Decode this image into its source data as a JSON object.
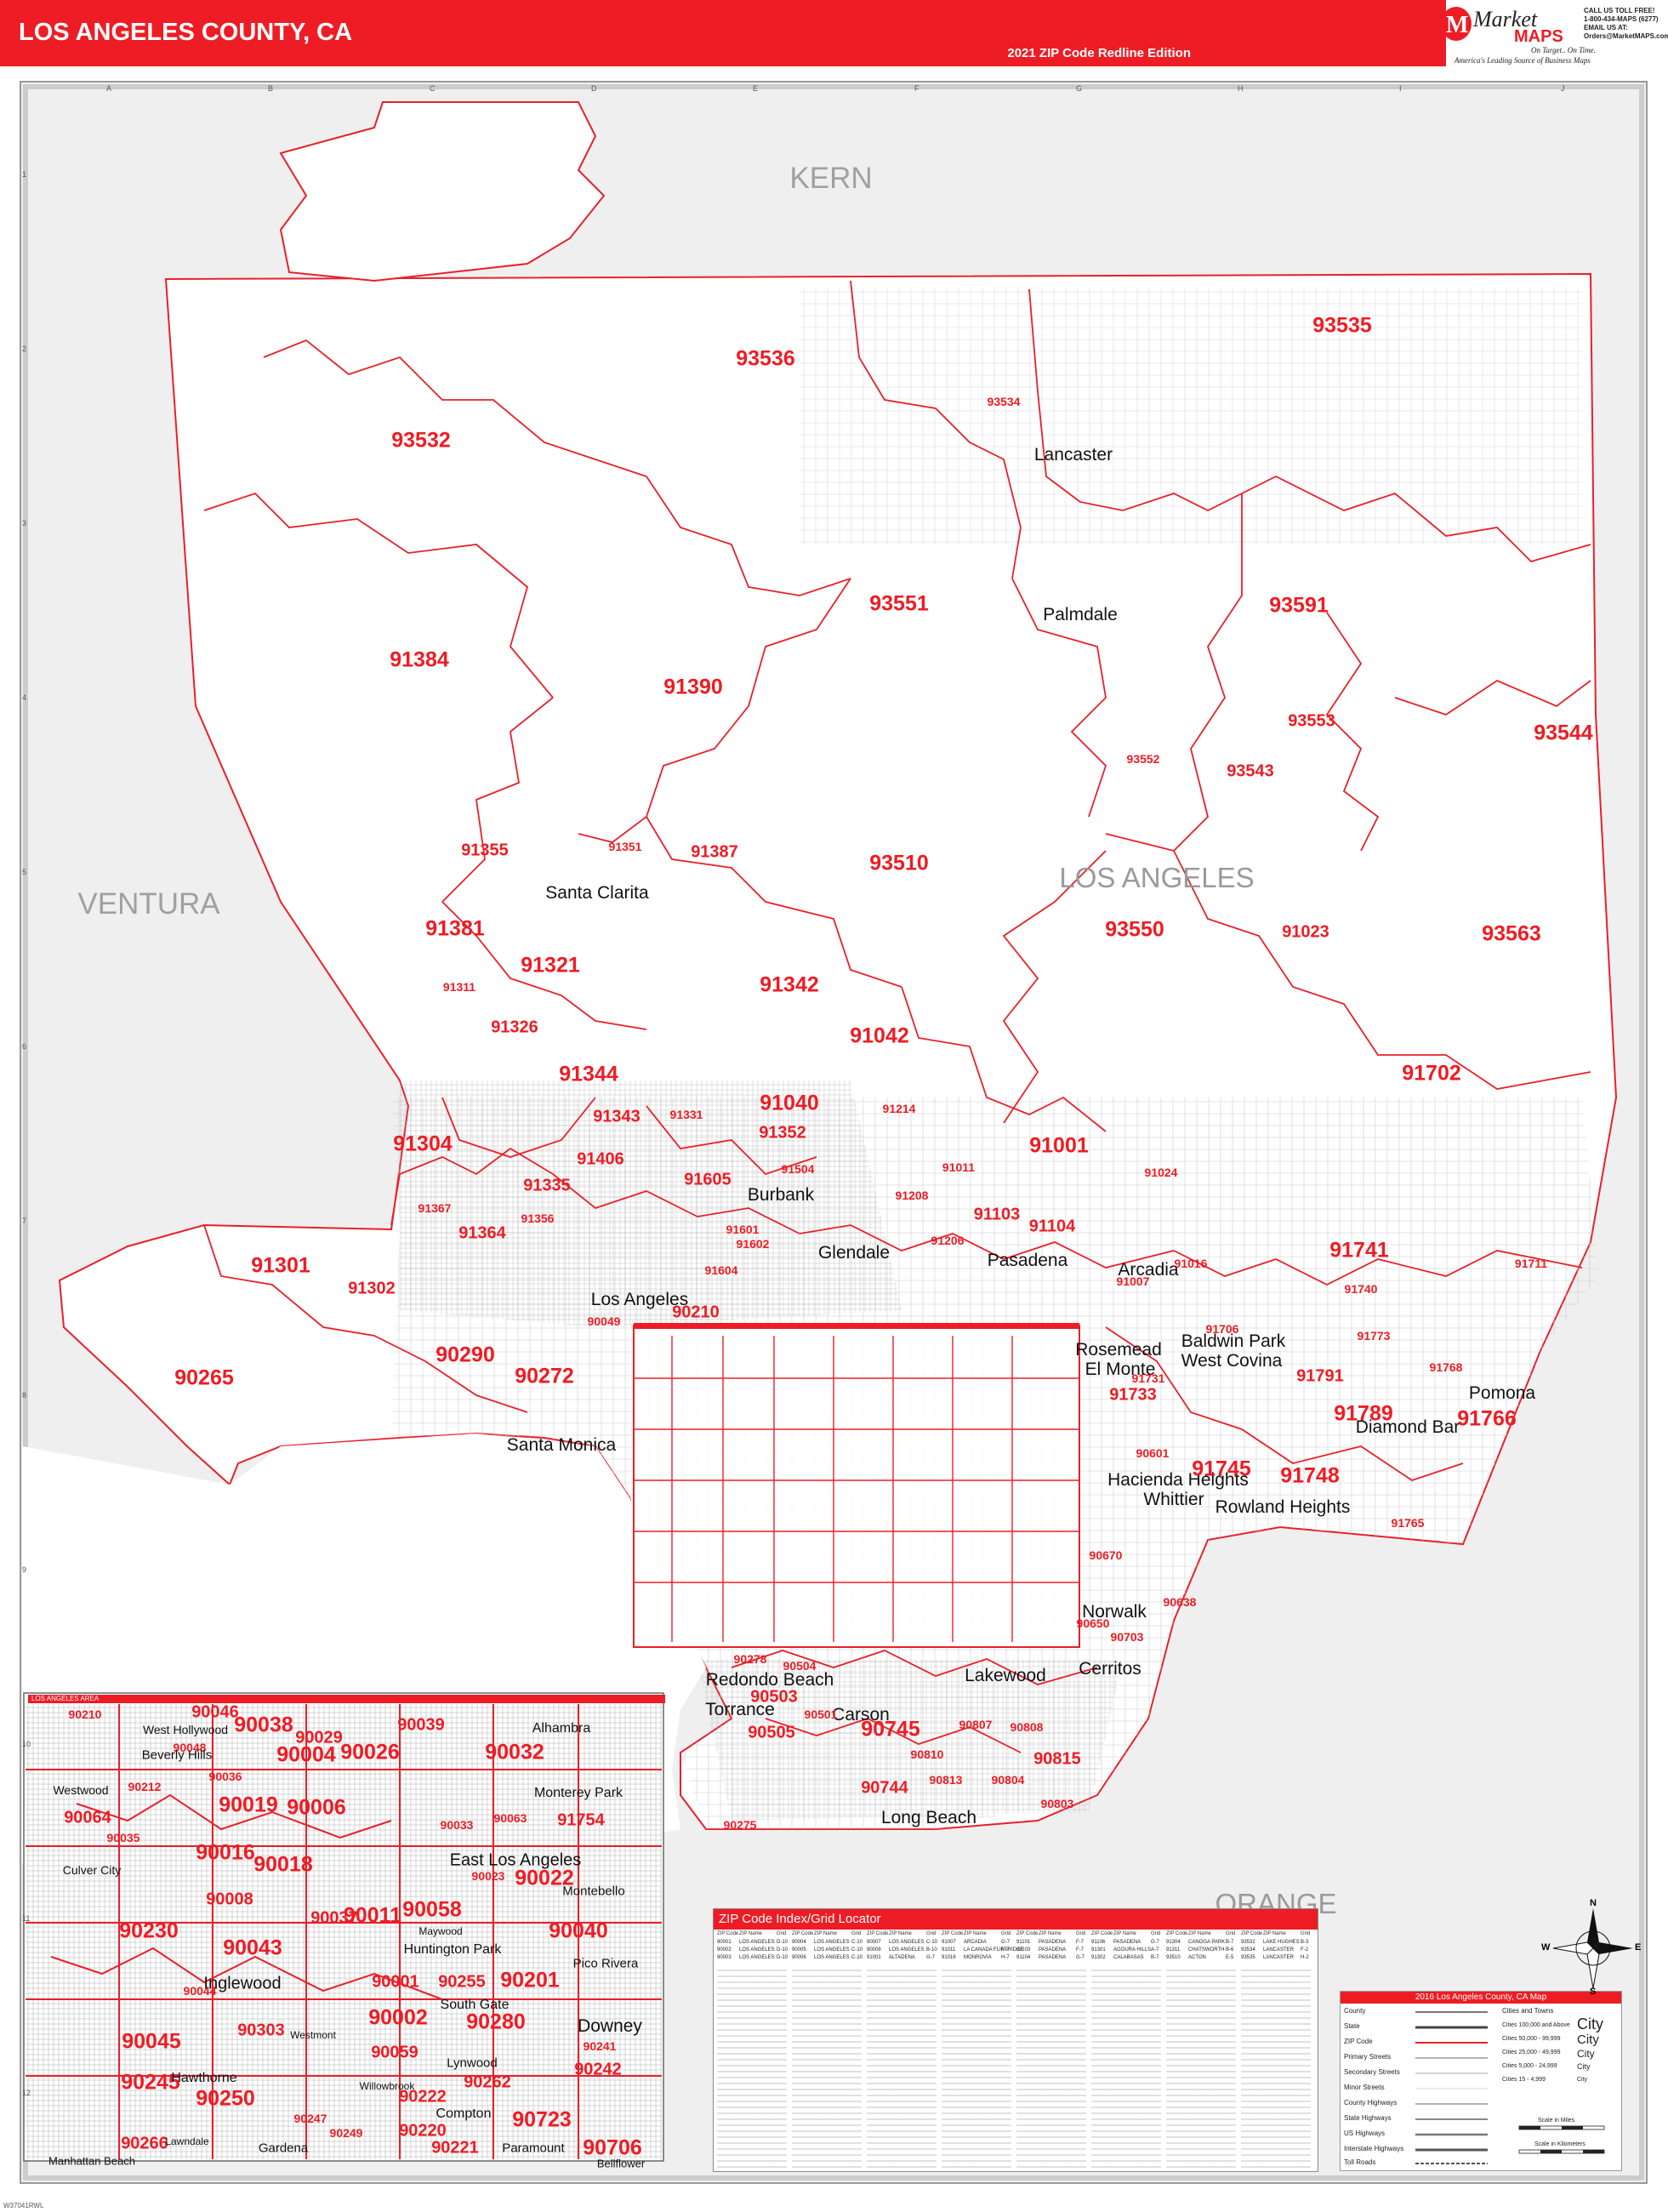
{
  "header": {
    "title": "LOS ANGELES COUNTY, CA",
    "edition": "2021 ZIP Code Redline Edition",
    "brand_word1": "Market",
    "brand_word2": "MAPS",
    "tagline1": "On Target.. On Time.",
    "tagline2": "America's Leading Source of Business Maps",
    "contact": [
      "CALL US TOLL FREE!",
      "1-800-434-MAPS (6277)",
      "EMAIL US AT:",
      "Orders@MarketMAPS.com"
    ]
  },
  "colors": {
    "accent": "#ee1c24",
    "boundary": "#e8202a",
    "county_fill": "#f2f2f2",
    "road": "#b0b0b0"
  },
  "grid": {
    "columns": [
      "A",
      "B",
      "C",
      "D",
      "E",
      "F",
      "G",
      "H",
      "I",
      "J"
    ],
    "rows": [
      "1",
      "2",
      "3",
      "4",
      "5",
      "6",
      "7",
      "8",
      "9",
      "10",
      "11",
      "12"
    ]
  },
  "counties": [
    "KERN",
    "VENTURA",
    "LOS ANGELES",
    "ORANGE"
  ],
  "cities": [
    "Lancaster",
    "Palmdale",
    "Santa Clarita",
    "Burbank",
    "Glendale",
    "Pasadena",
    "Los Angeles",
    "Santa Monica",
    "El Monte",
    "West Covina",
    "Pomona",
    "Diamond Bar",
    "Whittier",
    "Norwalk",
    "Cerritos",
    "Lakewood",
    "Torrance",
    "Carson",
    "Long Beach",
    "Redondo Beach",
    "Arcadia",
    "Rosemead",
    "Baldwin Park",
    "Hacienda Heights",
    "Rowland Heights"
  ],
  "zip_labels": [
    "93535",
    "93536",
    "93534",
    "93532",
    "93551",
    "93591",
    "91384",
    "91390",
    "93553",
    "93544",
    "93552",
    "93543",
    "91355",
    "91351",
    "91387",
    "93510",
    "91381",
    "91321",
    "93550",
    "91023",
    "93563",
    "91311",
    "91342",
    "91326",
    "91042",
    "91344",
    "91702",
    "91040",
    "91304",
    "91343",
    "91331",
    "91352",
    "91214",
    "91001",
    "91406",
    "91605",
    "91504",
    "91011",
    "91024",
    "91335",
    "91208",
    "91103",
    "91367",
    "91356",
    "91601",
    "91104",
    "91364",
    "91602",
    "91206",
    "91741",
    "91301",
    "91302",
    "91604",
    "91007",
    "91740",
    "91016",
    "91711",
    "90049",
    "90210",
    "91706",
    "91773",
    "90265",
    "90290",
    "90272",
    "91733",
    "91731",
    "91791",
    "91768",
    "91789",
    "91766",
    "91745",
    "91748",
    "90601",
    "90670",
    "91765",
    "90638",
    "90650",
    "90703",
    "90278",
    "90504",
    "90503",
    "90501",
    "90745",
    "90505",
    "90807",
    "90808",
    "90810",
    "90815",
    "90744",
    "90275",
    "90813",
    "90804",
    "90803"
  ],
  "inset": {
    "title": "LOS ANGELES AREA",
    "zip_labels": [
      "90046",
      "90038",
      "90026",
      "90029",
      "90032",
      "90048",
      "90004",
      "90039",
      "90036",
      "90019",
      "90006",
      "90033",
      "90063",
      "91754",
      "90016",
      "90018",
      "90023",
      "90022",
      "90008",
      "90037",
      "90011",
      "90058",
      "90040",
      "90043",
      "90001",
      "90255",
      "90201",
      "90230",
      "90044",
      "90002",
      "90280",
      "90045",
      "90303",
      "90059",
      "90262",
      "90241",
      "90242",
      "90245",
      "90250",
      "90222",
      "90220",
      "90723",
      "90706",
      "90266",
      "90221",
      "90247",
      "90249",
      "90210",
      "90064",
      "90035",
      "90212"
    ],
    "cities": [
      "Beverly Hills",
      "West Hollywood",
      "Alhambra",
      "Westwood",
      "Monterey Park",
      "East Los Angeles",
      "Culver City",
      "Montebello",
      "Pico Rivera",
      "Inglewood",
      "Huntington Park",
      "South Gate",
      "Downey",
      "Lynwood",
      "Hawthorne",
      "Compton",
      "Gardena",
      "Paramount",
      "Bellflower",
      "Manhattan Beach",
      "Lawndale",
      "Westmont",
      "Willowbrook",
      "Maywood"
    ]
  },
  "index_panel": {
    "title": "ZIP Code Index/Grid Locator",
    "column_headers": [
      "ZIP Code",
      "ZIP Name",
      "Grid"
    ],
    "sample_rows": [
      [
        "90001",
        "LOS ANGELES",
        "D-10"
      ],
      [
        "90002",
        "LOS ANGELES",
        "D-10"
      ],
      [
        "90003",
        "LOS ANGELES",
        "D-10"
      ],
      [
        "90004",
        "LOS ANGELES",
        "C-10"
      ],
      [
        "90005",
        "LOS ANGELES",
        "C-10"
      ],
      [
        "90006",
        "LOS ANGELES",
        "C-10"
      ],
      [
        "90007",
        "LOS ANGELES",
        "C-10"
      ],
      [
        "90008",
        "LOS ANGELES",
        "B-10"
      ],
      [
        "91001",
        "ALTADENA",
        "G-7"
      ],
      [
        "91007",
        "ARCADIA",
        "G-7"
      ],
      [
        "91011",
        "LA CANADA FLINTRIDGE",
        "F-7"
      ],
      [
        "91016",
        "MONROVIA",
        "H-7"
      ],
      [
        "91101",
        "PASADENA",
        "F-7"
      ],
      [
        "91103",
        "PASADENA",
        "F-7"
      ],
      [
        "91104",
        "PASADENA",
        "G-7"
      ],
      [
        "91106",
        "PASADENA",
        "G-7"
      ],
      [
        "91301",
        "AGOURA HILLS",
        "A-7"
      ],
      [
        "91302",
        "CALABASAS",
        "B-7"
      ],
      [
        "91304",
        "CANOGA PARK",
        "B-7"
      ],
      [
        "91311",
        "CHATSWORTH",
        "B-6"
      ],
      [
        "93510",
        "ACTON",
        "E-5"
      ],
      [
        "93532",
        "LAKE HUGHES",
        "B-3"
      ],
      [
        "93534",
        "LANCASTER",
        "F-2"
      ],
      [
        "93535",
        "LANCASTER",
        "H-2"
      ]
    ]
  },
  "legend": {
    "title": "2016 Los Angeles County, CA Map",
    "items": [
      "County",
      "State",
      "ZIP Code",
      "Primary Streets",
      "Secondary Streets",
      "Minor Streets",
      "County Highways",
      "State Highways",
      "US Highways",
      "Interstate Highways",
      "Toll Roads"
    ],
    "cities_header": "Cities and Towns",
    "city_classes": [
      "Cities 100,000 and Above",
      "Cities 50,000 - 99,999",
      "Cities 25,000 - 49,999",
      "Cities 5,000 - 24,999",
      "Cities 15 - 4,999"
    ],
    "city_samples": [
      "City",
      "City",
      "City",
      "City",
      "City"
    ],
    "scale_miles": "Scale in Miles",
    "scale_km": "Scale in Kilometers"
  },
  "compass_letters": [
    "N",
    "E",
    "S",
    "W"
  ],
  "footer_code": "W37041RWL"
}
